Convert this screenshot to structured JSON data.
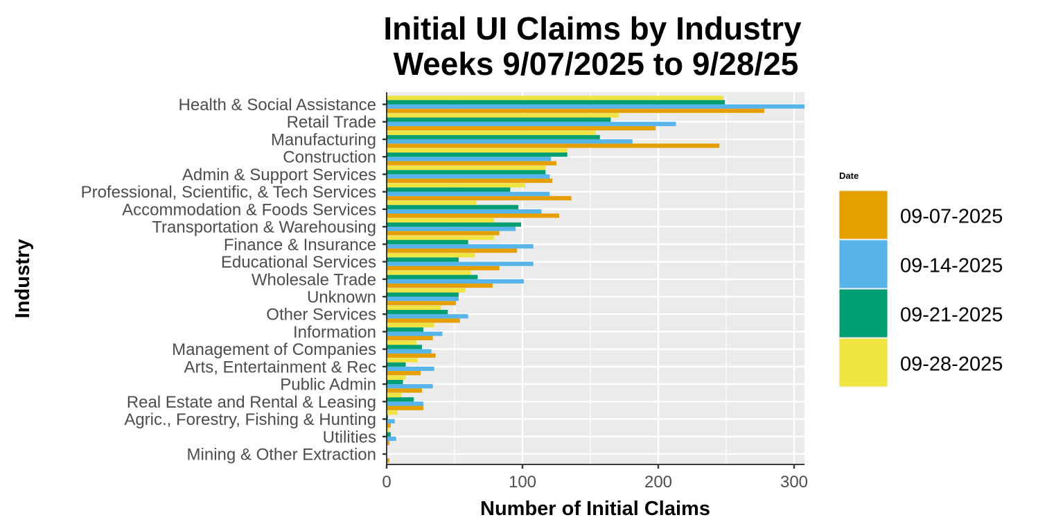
{
  "chart_data": {
    "type": "bar",
    "orientation": "horizontal",
    "title_lines": [
      "Initial UI Claims by Industry",
      "Weeks  9/07/2025 to 9/28/25"
    ],
    "xlabel": "Number of Initial Claims",
    "ylabel": "Industry",
    "xlim": [
      0,
      308
    ],
    "x_ticks": [
      0,
      100,
      200,
      300
    ],
    "grid": true,
    "legend": {
      "title": "Date",
      "position": "right"
    },
    "categories": [
      "Health & Social Assistance",
      "Retail Trade",
      "Manufacturing",
      "Construction",
      "Admin & Support Services",
      "Professional, Scientific, & Tech Services",
      "Accommodation & Foods Services",
      "Transportation & Warehousing",
      "Finance & Insurance",
      "Educational Services",
      "Wholesale Trade",
      "Unknown",
      "Other Services",
      "Information",
      "Management of Companies",
      "Arts, Entertainment & Rec",
      "Public Admin",
      "Real Estate and Rental & Leasing",
      "Agric., Forestry, Fishing & Hunting",
      "Utilities",
      "Mining & Other Extraction"
    ],
    "series": [
      {
        "name": "09-07-2025",
        "color": "#E69F00",
        "values": [
          278,
          198,
          245,
          125,
          122,
          136,
          127,
          83,
          96,
          83,
          78,
          51,
          54,
          34,
          36,
          25,
          26,
          27,
          3,
          2,
          2
        ]
      },
      {
        "name": "09-14-2025",
        "color": "#56B4E9",
        "values": [
          310,
          213,
          181,
          121,
          120,
          120,
          114,
          95,
          108,
          108,
          101,
          53,
          60,
          41,
          33,
          35,
          34,
          27,
          6,
          7,
          0
        ]
      },
      {
        "name": "09-21-2025",
        "color": "#009E73",
        "values": [
          249,
          165,
          157,
          133,
          117,
          91,
          97,
          99,
          60,
          53,
          67,
          53,
          45,
          27,
          26,
          14,
          12,
          20,
          1,
          3,
          0
        ]
      },
      {
        "name": "09-28-2025",
        "color": "#F0E442",
        "values": [
          248,
          171,
          154,
          133,
          117,
          102,
          66,
          79,
          79,
          65,
          62,
          58,
          40,
          35,
          22,
          23,
          14,
          11,
          8,
          2,
          0
        ]
      }
    ],
    "panel_background": "#EBEBEB",
    "grid_color": "#FFFFFF"
  }
}
